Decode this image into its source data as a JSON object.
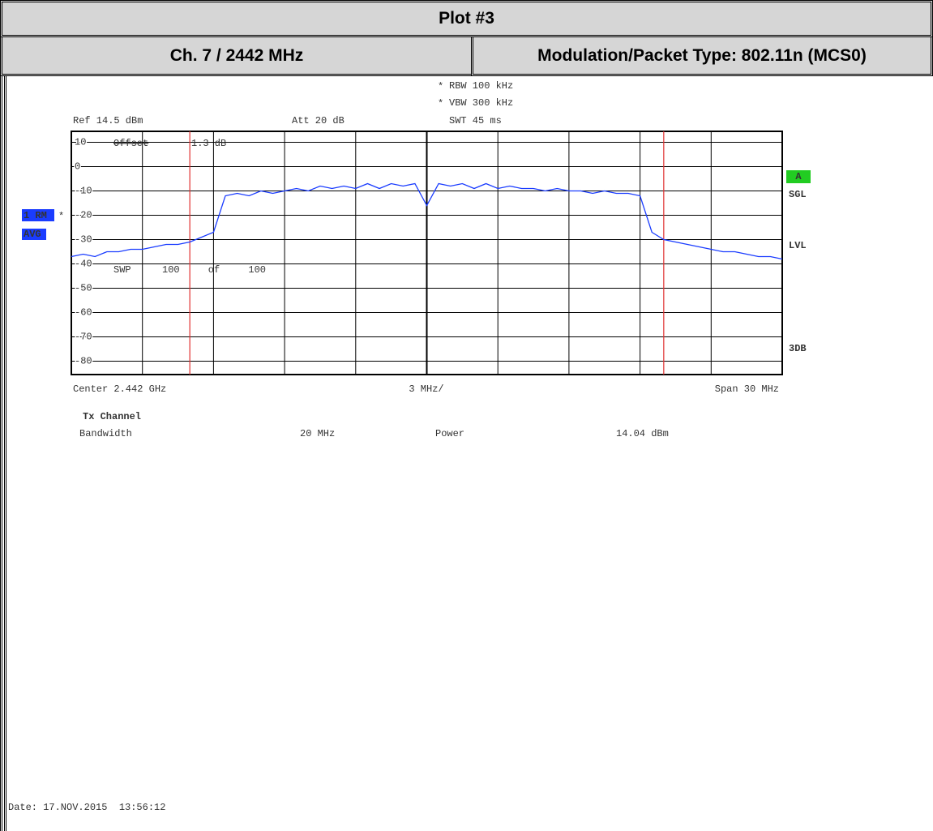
{
  "header": {
    "title": "Plot #3",
    "channel": "Ch. 7 / 2442 MHz",
    "modulation": "Modulation/Packet Type: 802.11n (MCS0)"
  },
  "instrument": {
    "star": "*",
    "rbw": "RBW 100 kHz",
    "vbw": "VBW 300 kHz",
    "swt": "SWT 45 ms",
    "ref": "Ref 14.5 dBm",
    "att": "Att 20 dB",
    "offset": "Offset",
    "offset_value": "1.3 dB",
    "swp": "SWP",
    "swp_count": "100 of 100",
    "trace_mode": "1 RM",
    "detector": "AVG",
    "trace_flag": "A",
    "sgl": "SGL",
    "lvl": "LVL",
    "db3": "3DB",
    "center": "Center 2.442 GHz",
    "per_div": "3 MHz/",
    "span": "Span 30 MHz"
  },
  "chart_data": {
    "type": "line",
    "color": "#1a3cff",
    "x": [
      2427,
      2427.5,
      2428,
      2428.5,
      2429,
      2429.5,
      2430,
      2430.5,
      2431,
      2431.5,
      2432,
      2432.5,
      2433,
      2433.5,
      2434,
      2434.5,
      2435,
      2435.5,
      2436,
      2436.5,
      2437,
      2437.5,
      2438,
      2438.5,
      2439,
      2439.5,
      2440,
      2440.5,
      2441,
      2441.5,
      2442,
      2442.5,
      2443,
      2443.5,
      2444,
      2444.5,
      2445,
      2445.5,
      2446,
      2446.5,
      2447,
      2447.5,
      2448,
      2448.5,
      2449,
      2449.5,
      2450,
      2450.5,
      2451,
      2451.5,
      2452,
      2452.5,
      2453,
      2453.5,
      2454,
      2454.5,
      2455,
      2455.5,
      2456,
      2456.5,
      2457
    ],
    "values": [
      -37,
      -36,
      -37,
      -35,
      -35,
      -34,
      -34,
      -33,
      -32,
      -32,
      -31,
      -29,
      -27,
      -12,
      -11,
      -12,
      -10,
      -11,
      -10,
      -9,
      -10,
      -8,
      -9,
      -8,
      -9,
      -7,
      -9,
      -7,
      -8,
      -7,
      -16,
      -7,
      -8,
      -7,
      -9,
      -7,
      -9,
      -8,
      -9,
      -9,
      -10,
      -9,
      -10,
      -10,
      -11,
      -10,
      -11,
      -11,
      -12,
      -27,
      -30,
      -31,
      -32,
      -33,
      -34,
      -35,
      -35,
      -36,
      -37,
      -37,
      -38
    ],
    "xlim": [
      2427,
      2457
    ],
    "ylim": [
      -85.5,
      14.5
    ],
    "yticks": [
      10,
      0,
      -10,
      -20,
      -30,
      -40,
      -50,
      -60,
      -70,
      -80
    ],
    "markers": [
      2432,
      2452
    ],
    "marker_color": "#e03030",
    "grid": true
  },
  "results": {
    "heading": "Tx Channel",
    "bandwidth_label": "Bandwidth",
    "bandwidth": "20 MHz",
    "power_label": "Power",
    "power": "14.04 dBm"
  },
  "footer": {
    "date": "Date: 17.NOV.2015  13:56:12"
  }
}
